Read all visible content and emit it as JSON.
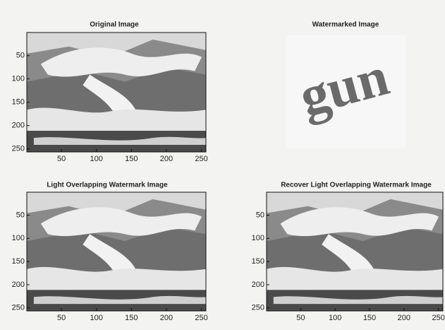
{
  "panels": [
    {
      "title": "Original Image",
      "xlim": [
        0.5,
        256.5
      ],
      "ylim": [
        0.5,
        256.5
      ],
      "xticks": [
        50,
        100,
        150,
        200,
        250
      ],
      "yticks": [
        50,
        100,
        150,
        200,
        250
      ]
    },
    {
      "title": "Watermarked Image",
      "watermark_text": "gun"
    },
    {
      "title": "Light Overlapping Watermark Image",
      "xlim": [
        0.5,
        256.5
      ],
      "ylim": [
        0.5,
        256.5
      ],
      "xticks": [
        50,
        100,
        150,
        200,
        250
      ],
      "yticks": [
        50,
        100,
        150,
        200,
        250
      ]
    },
    {
      "title": "Recover Light Overlapping Watermark Image",
      "xlim": [
        0.5,
        256.5
      ],
      "ylim": [
        0.5,
        256.5
      ],
      "xticks": [
        50,
        100,
        150,
        200,
        250
      ],
      "yticks": [
        50,
        100,
        150,
        200,
        250
      ]
    }
  ]
}
